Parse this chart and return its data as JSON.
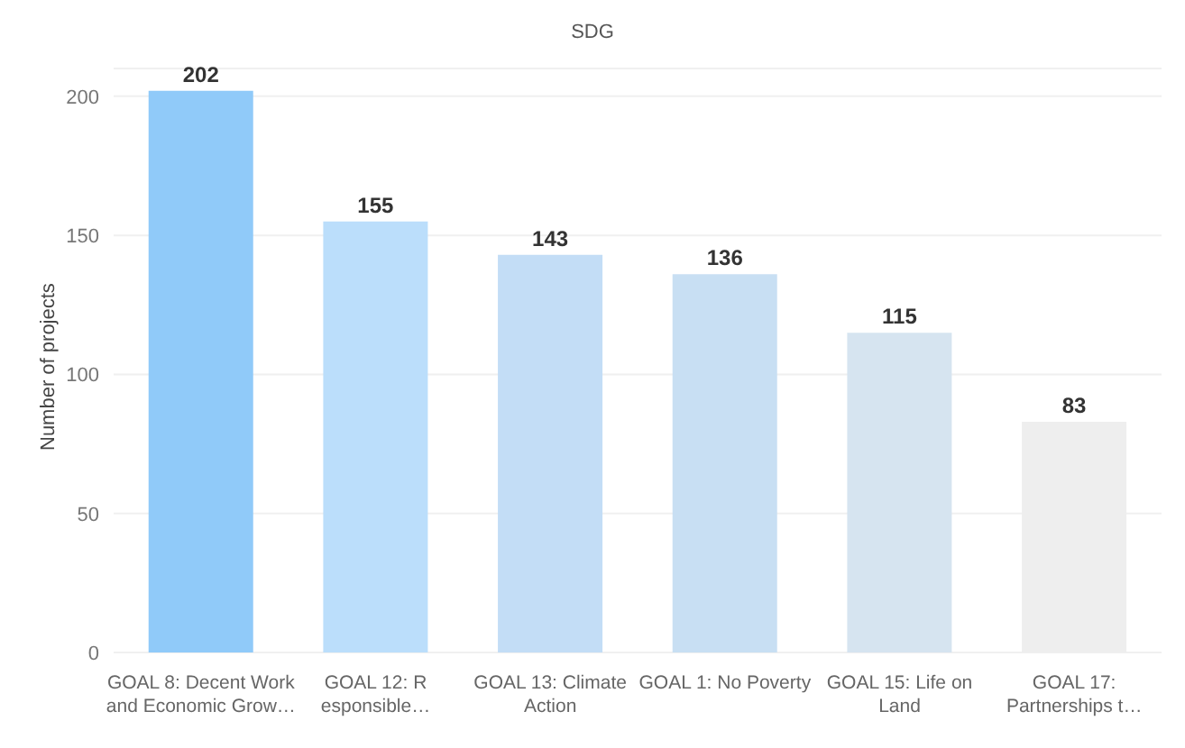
{
  "chart_data": {
    "type": "bar",
    "title": "SDG",
    "ylabel": "Number of projects",
    "categories": [
      "GOAL 8: Decent Work\nand Economic Grow…",
      "GOAL 12: R\nesponsible…",
      "GOAL 13: Climate\nAction",
      "GOAL 1: No Poverty",
      "GOAL 15: Life on\nLand",
      "GOAL 17:\nPartnerships t…"
    ],
    "values": [
      202,
      155,
      143,
      136,
      115,
      83
    ],
    "colors": [
      "#90caf9",
      "#bbdefb",
      "#c3ddf6",
      "#c8dff3",
      "#d6e4f0",
      "#eeeeee"
    ],
    "ylim": [
      0,
      210
    ],
    "yticks": [
      0,
      50,
      100,
      150,
      200
    ],
    "grid": "y",
    "data_labels": true
  }
}
